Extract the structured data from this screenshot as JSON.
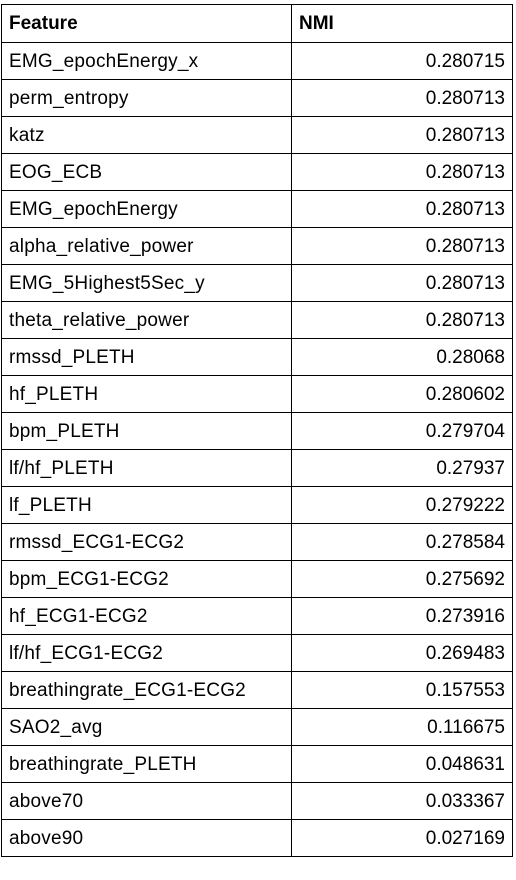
{
  "table": {
    "headers": [
      "Feature",
      "NMI"
    ],
    "rows": [
      [
        "EMG_epochEnergy_x",
        "0.280715"
      ],
      [
        "perm_entropy",
        "0.280713"
      ],
      [
        "katz",
        "0.280713"
      ],
      [
        "EOG_ECB",
        "0.280713"
      ],
      [
        "EMG_epochEnergy",
        "0.280713"
      ],
      [
        "alpha_relative_power",
        "0.280713"
      ],
      [
        "EMG_5Highest5Sec_y",
        "0.280713"
      ],
      [
        "theta_relative_power",
        "0.280713"
      ],
      [
        "rmssd_PLETH",
        "0.28068"
      ],
      [
        "hf_PLETH",
        "0.280602"
      ],
      [
        "bpm_PLETH",
        "0.279704"
      ],
      [
        "lf/hf_PLETH",
        "0.27937"
      ],
      [
        "lf_PLETH",
        "0.279222"
      ],
      [
        "rmssd_ECG1-ECG2",
        "0.278584"
      ],
      [
        "bpm_ECG1-ECG2",
        "0.275692"
      ],
      [
        "hf_ECG1-ECG2",
        "0.273916"
      ],
      [
        "lf/hf_ECG1-ECG2",
        "0.269483"
      ],
      [
        "breathingrate_ECG1-ECG2",
        "0.157553"
      ],
      [
        "SAO2_avg",
        "0.116675"
      ],
      [
        "breathingrate_PLETH",
        "0.048631"
      ],
      [
        "above70",
        "0.033367"
      ],
      [
        "above90",
        "0.027169"
      ]
    ]
  }
}
